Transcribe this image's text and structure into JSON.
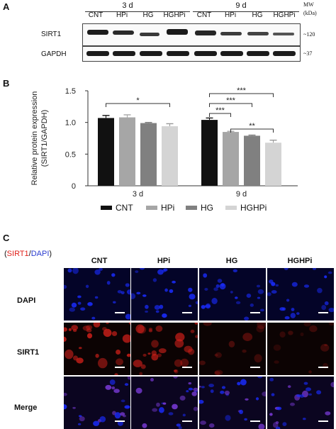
{
  "panel_letters": {
    "a": "A",
    "b": "B",
    "c": "C"
  },
  "blot": {
    "group_3d": "3 d",
    "group_9d": "9 d",
    "lanes": [
      "CNT",
      "HPi",
      "HG",
      "HGHPi",
      "CNT",
      "HPi",
      "HG",
      "HGHPi"
    ],
    "mw_header": "MW",
    "mw_unit": "(kDa)",
    "rows": [
      {
        "label": "SIRT1",
        "mw": "~120"
      },
      {
        "label": "GAPDH",
        "mw": "~37"
      }
    ]
  },
  "chart_data": {
    "type": "bar",
    "categories": [
      "3 d",
      "9 d"
    ],
    "series": [
      {
        "name": "CNT",
        "values": [
          1.07,
          1.04
        ],
        "errors": [
          0.04,
          0.03
        ],
        "color": "#111111"
      },
      {
        "name": "HPi",
        "values": [
          1.08,
          0.85
        ],
        "errors": [
          0.04,
          0.01
        ],
        "color": "#a6a6a6"
      },
      {
        "name": "HG",
        "values": [
          0.99,
          0.79
        ],
        "errors": [
          0.01,
          0.01
        ],
        "color": "#808080"
      },
      {
        "name": "HGHPi",
        "values": [
          0.94,
          0.68
        ],
        "errors": [
          0.04,
          0.04
        ],
        "color": "#d4d4d4"
      }
    ],
    "ylabel": "Relative protein expression (SIRT1/GAPDH)",
    "ylabel_lines": [
      "Relative protein expression",
      "(SIRT1/GAPDH)"
    ],
    "ylim": [
      0,
      1.5
    ],
    "yticks": [
      0,
      0.5,
      1.0,
      1.5
    ],
    "ytick_labels": [
      "0",
      "0.5",
      "1.0",
      "1.5"
    ],
    "grid": false,
    "legend_placement": "bottom",
    "significance": [
      {
        "category": "3 d",
        "from": "CNT",
        "to": "HGHPi",
        "label": "*"
      },
      {
        "category": "9 d",
        "from": "CNT",
        "to": "HGHPi",
        "label": "***"
      },
      {
        "category": "9 d",
        "from": "CNT",
        "to": "HG",
        "label": "***"
      },
      {
        "category": "9 d",
        "from": "CNT",
        "to": "HPi",
        "label": "***"
      },
      {
        "category": "9 d",
        "from": "HPi",
        "to": "HGHPi",
        "label": "**"
      }
    ]
  },
  "if_panel": {
    "legend": {
      "prefix": "(",
      "sirt1": "SIRT1",
      "slash": "/",
      "dapi": "DAPI",
      "suffix": ")"
    },
    "columns": [
      "CNT",
      "HPi",
      "HG",
      "HGHPi"
    ],
    "rows": [
      "DAPI",
      "SIRT1",
      "Merge"
    ],
    "colors": {
      "dapi": "#1a2cff",
      "sirt1": "#d0201a",
      "merge": "#7a3ad8"
    }
  }
}
